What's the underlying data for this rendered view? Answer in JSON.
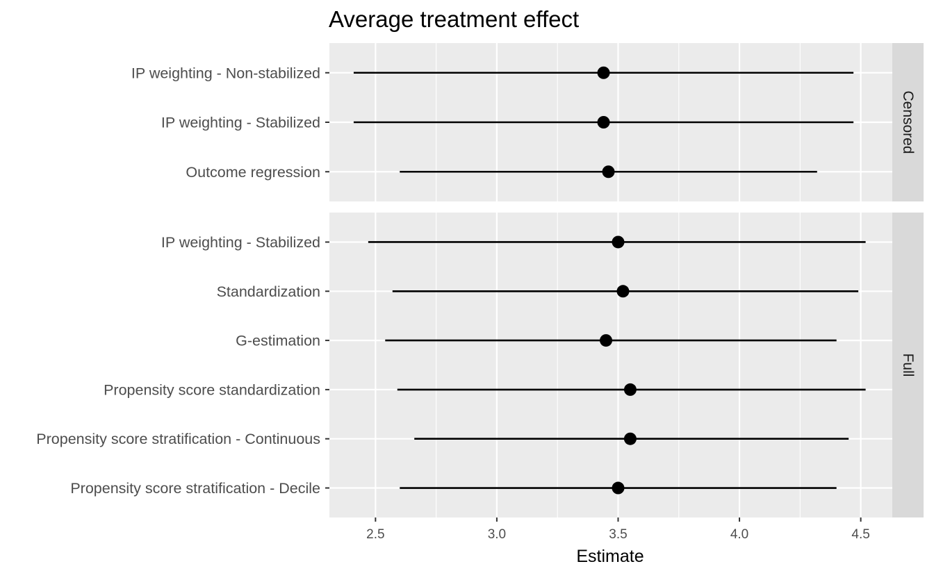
{
  "chart_data": {
    "type": "forest",
    "title": "Average treatment effect",
    "xlabel": "Estimate",
    "ylabel": "",
    "xlim": [
      2.31,
      4.63
    ],
    "x_ticks": [
      2.5,
      3.0,
      3.5,
      4.0,
      4.5
    ],
    "x_tick_labels": [
      "2.5",
      "3.0",
      "3.5",
      "4.0",
      "4.5"
    ],
    "grid": true,
    "panels": [
      {
        "name": "Censored",
        "rows": [
          {
            "label": "IP weighting - Non-stabilized",
            "estimate": 3.44,
            "lower": 2.41,
            "upper": 4.47
          },
          {
            "label": "IP weighting - Stabilized",
            "estimate": 3.44,
            "lower": 2.41,
            "upper": 4.47
          },
          {
            "label": "Outcome regression",
            "estimate": 3.46,
            "lower": 2.6,
            "upper": 4.32
          }
        ]
      },
      {
        "name": "Full",
        "rows": [
          {
            "label": "IP weighting - Stabilized",
            "estimate": 3.5,
            "lower": 2.47,
            "upper": 4.52
          },
          {
            "label": "Standardization",
            "estimate": 3.52,
            "lower": 2.57,
            "upper": 4.49
          },
          {
            "label": "G-estimation",
            "estimate": 3.45,
            "lower": 2.54,
            "upper": 4.4
          },
          {
            "label": "Propensity score standardization",
            "estimate": 3.55,
            "lower": 2.59,
            "upper": 4.52
          },
          {
            "label": "Propensity score stratification - Continuous",
            "estimate": 3.55,
            "lower": 2.66,
            "upper": 4.45
          },
          {
            "label": "Propensity score stratification - Decile",
            "estimate": 3.5,
            "lower": 2.6,
            "upper": 4.4
          }
        ]
      }
    ]
  }
}
